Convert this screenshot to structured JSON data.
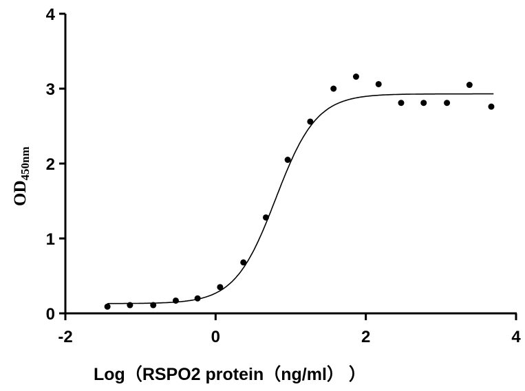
{
  "chart_data": {
    "type": "scatter",
    "title": "",
    "xlabel": "Log（RSPO2 protein（ng/ml）  ）",
    "ylabel_main": "OD",
    "ylabel_sub": "450nm",
    "xlim": [
      -2,
      4
    ],
    "ylim": [
      0,
      4
    ],
    "xticks": [
      "-2",
      "0",
      "2",
      "4"
    ],
    "yticks": [
      "0",
      "1",
      "2",
      "3",
      "4"
    ],
    "grid": false,
    "points": {
      "x": [
        -1.44,
        -1.14,
        -0.83,
        -0.53,
        -0.24,
        0.06,
        0.37,
        0.67,
        0.96,
        1.26,
        1.57,
        1.87,
        2.17,
        2.47,
        2.77,
        3.08,
        3.38,
        3.67
      ],
      "y": [
        0.09,
        0.11,
        0.11,
        0.17,
        0.2,
        0.35,
        0.68,
        1.28,
        2.05,
        2.56,
        3.0,
        3.16,
        3.06,
        2.81,
        2.81,
        2.81,
        3.05,
        2.76
      ]
    },
    "fit_curve": {
      "model": "4PL",
      "bottom": 0.13,
      "top": 2.93,
      "logEC50": 0.8,
      "hill": 1.6,
      "x_range": [
        -1.44,
        3.7
      ]
    },
    "colors": {
      "marks": "#000000"
    }
  }
}
